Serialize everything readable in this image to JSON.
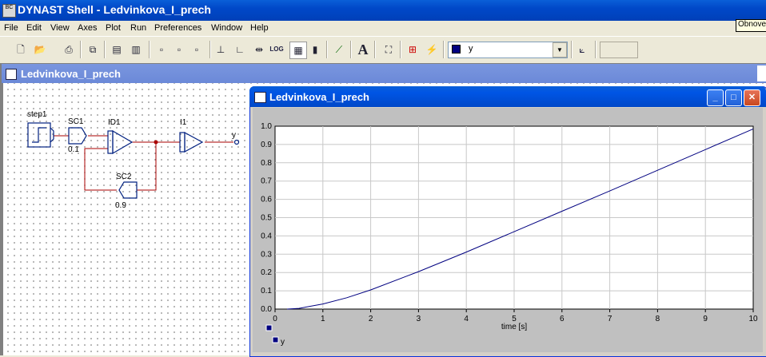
{
  "app": {
    "title": "DYNAST Shell - Ledvinkova_I_prech",
    "icon_text": "BC",
    "tooltip": "Obnovení"
  },
  "menu": [
    "File",
    "Edit",
    "View",
    "Axes",
    "Plot",
    "Run",
    "Preferences",
    "Window",
    "Help"
  ],
  "toolbar": {
    "icons": [
      "new-document-icon",
      "open-folder-icon",
      "print-icon",
      "copy-icon",
      "schematic-icon",
      "netlist-icon",
      "page-prev-icon",
      "page-next-icon",
      "page-icon",
      "axis-x-icon",
      "axis-y-icon",
      "zoom-fit-icon",
      "log-scale-icon",
      "grid-icon",
      "bar-icon",
      "chart-icon",
      "text-font-icon",
      "frame-icon",
      "crosshair-icon",
      "marker-icon",
      "axes-icon"
    ],
    "log_label": "LOG",
    "font_label": "A",
    "series_select": {
      "value": "y",
      "color": "#000080"
    }
  },
  "schematic_window": {
    "title": "Ledvinkova_I_prech",
    "blocks": {
      "step": {
        "label": "step1"
      },
      "sc1": {
        "label": "SC1",
        "value": "0.1"
      },
      "id1": {
        "label": "ID1"
      },
      "sc2": {
        "label": "SC2",
        "value": "0.9"
      },
      "i1": {
        "label": "I1"
      },
      "output": {
        "label": "y"
      }
    },
    "wire_color": "#aa0000",
    "block_color": "#002080"
  },
  "graph_window": {
    "title": "Ledvinkova_I_prech",
    "legend": [
      {
        "name": "y",
        "color": "#000080"
      }
    ]
  },
  "chart_data": {
    "type": "line",
    "title": "",
    "xlabel": "time [s]",
    "ylabel": "",
    "xlim": [
      0,
      10
    ],
    "ylim": [
      0,
      1.0
    ],
    "xticks": [
      "0",
      "1",
      "2",
      "3",
      "4",
      "5",
      "6",
      "7",
      "8",
      "9",
      "10"
    ],
    "yticks": [
      "0.0",
      "0.1",
      "0.2",
      "0.3",
      "0.4",
      "0.5",
      "0.6",
      "0.7",
      "0.8",
      "0.9",
      "1.0"
    ],
    "grid": true,
    "legend_position": "bottom-left",
    "series": [
      {
        "name": "y",
        "color": "#000080",
        "x": [
          0.25,
          0.5,
          1.0,
          1.5,
          2.0,
          3.0,
          4.0,
          5.0,
          6.0,
          7.0,
          8.0,
          9.0,
          10.0
        ],
        "y": [
          0.0,
          0.004,
          0.028,
          0.062,
          0.105,
          0.205,
          0.312,
          0.423,
          0.535,
          0.646,
          0.759,
          0.872,
          0.985
        ]
      }
    ]
  }
}
